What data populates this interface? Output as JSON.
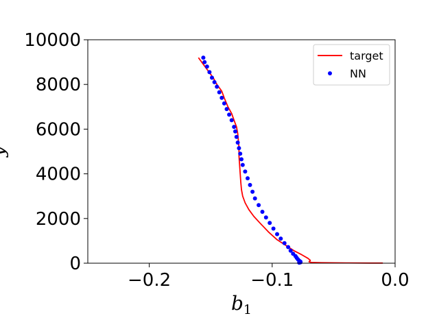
{
  "chart_data": {
    "type": "line",
    "title": "",
    "xlabel": "b",
    "xlabel_subscript": "1",
    "ylabel": "y",
    "xlim": [
      -0.25,
      0.0
    ],
    "ylim": [
      0,
      10000
    ],
    "xticks": [
      -0.2,
      -0.1,
      0.0
    ],
    "xtick_labels": [
      "−0.2",
      "−0.1",
      "0.0"
    ],
    "yticks": [
      0,
      2000,
      4000,
      6000,
      8000,
      10000
    ],
    "ytick_labels": [
      "0",
      "2000",
      "4000",
      "6000",
      "8000",
      "10000"
    ],
    "grid": false,
    "legend_position": "top-right",
    "series": [
      {
        "name": "target",
        "style": "line",
        "color": "#ff0000",
        "x": [
          -0.16,
          -0.156,
          -0.152,
          -0.148,
          -0.145,
          -0.141,
          -0.139,
          -0.136,
          -0.133,
          -0.131,
          -0.129,
          -0.128,
          -0.1275,
          -0.127,
          -0.127,
          -0.1265,
          -0.126,
          -0.1255,
          -0.125,
          -0.124,
          -0.122,
          -0.119,
          -0.115,
          -0.11,
          -0.103,
          -0.096,
          -0.089,
          -0.082,
          -0.076,
          -0.071,
          -0.069,
          -0.07,
          -0.068,
          -0.06,
          -0.04,
          -0.02,
          -0.01
        ],
        "y": [
          9200,
          8900,
          8600,
          8300,
          8000,
          7700,
          7400,
          7000,
          6700,
          6400,
          6100,
          5800,
          5500,
          5200,
          4800,
          4400,
          4000,
          3600,
          3300,
          3000,
          2700,
          2400,
          2100,
          1800,
          1400,
          1050,
          800,
          550,
          380,
          220,
          130,
          60,
          35,
          20,
          12,
          7,
          5
        ]
      },
      {
        "name": "NN",
        "style": "scatter",
        "color": "#0000ff",
        "x": [
          -0.156,
          -0.155,
          -0.153,
          -0.151,
          -0.149,
          -0.147,
          -0.145,
          -0.143,
          -0.141,
          -0.139,
          -0.137,
          -0.135,
          -0.133,
          -0.131,
          -0.13,
          -0.129,
          -0.128,
          -0.127,
          -0.126,
          -0.125,
          -0.124,
          -0.122,
          -0.12,
          -0.118,
          -0.116,
          -0.114,
          -0.111,
          -0.108,
          -0.105,
          -0.102,
          -0.099,
          -0.096,
          -0.093,
          -0.09,
          -0.087,
          -0.085,
          -0.083,
          -0.081,
          -0.08,
          -0.079,
          -0.078,
          -0.077,
          -0.077,
          -0.078
        ],
        "y": [
          9200,
          9000,
          8800,
          8550,
          8300,
          8100,
          7900,
          7650,
          7400,
          7150,
          6900,
          6650,
          6400,
          6100,
          5900,
          5650,
          5400,
          5150,
          4900,
          4650,
          4400,
          4100,
          3800,
          3500,
          3200,
          2900,
          2600,
          2300,
          2050,
          1800,
          1550,
          1300,
          1100,
          900,
          720,
          560,
          420,
          320,
          240,
          170,
          110,
          70,
          40,
          20
        ]
      }
    ]
  }
}
